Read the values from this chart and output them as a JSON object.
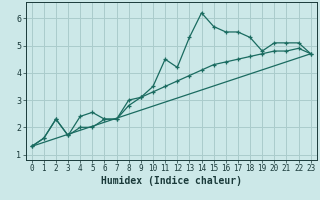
{
  "title": "",
  "xlabel": "Humidex (Indice chaleur)",
  "ylabel": "",
  "bg_color": "#cce8e8",
  "grid_color": "#aacccc",
  "line_color": "#1a6b60",
  "xlim": [
    -0.5,
    23.5
  ],
  "ylim": [
    0.8,
    6.6
  ],
  "xticks": [
    0,
    1,
    2,
    3,
    4,
    5,
    6,
    7,
    8,
    9,
    10,
    11,
    12,
    13,
    14,
    15,
    16,
    17,
    18,
    19,
    20,
    21,
    22,
    23
  ],
  "yticks": [
    1,
    2,
    3,
    4,
    5,
    6
  ],
  "line1_x": [
    0,
    1,
    2,
    3,
    4,
    5,
    6,
    7,
    8,
    9,
    10,
    11,
    12,
    13,
    14,
    15,
    16,
    17,
    18,
    19,
    20,
    21,
    22,
    23
  ],
  "line1_y": [
    1.3,
    1.6,
    2.3,
    1.7,
    2.4,
    2.55,
    2.3,
    2.3,
    3.0,
    3.1,
    3.5,
    4.5,
    4.2,
    5.3,
    6.2,
    5.7,
    5.5,
    5.5,
    5.3,
    4.8,
    5.1,
    5.1,
    5.1,
    4.7
  ],
  "line2_x": [
    0,
    1,
    2,
    3,
    4,
    5,
    6,
    7,
    8,
    9,
    10,
    11,
    12,
    13,
    14,
    15,
    16,
    17,
    18,
    19,
    20,
    21,
    22,
    23
  ],
  "line2_y": [
    1.3,
    1.6,
    2.3,
    1.7,
    2.0,
    2.0,
    2.3,
    2.3,
    2.8,
    3.1,
    3.3,
    3.5,
    3.7,
    3.9,
    4.1,
    4.3,
    4.4,
    4.5,
    4.6,
    4.7,
    4.8,
    4.8,
    4.9,
    4.7
  ],
  "line3_x": [
    0,
    23
  ],
  "line3_y": [
    1.3,
    4.7
  ],
  "xlabel_fontsize": 7,
  "tick_fontsize": 5.5
}
